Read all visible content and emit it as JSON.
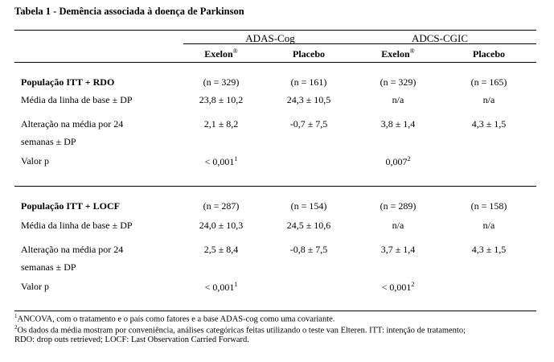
{
  "title": "Tabela 1 - Demência associada à doença de Parkinson",
  "groups": [
    "ADAS-Cog",
    "ADCS-CGIC"
  ],
  "columns": [
    {
      "name": "Exelon",
      "sup": "®"
    },
    {
      "name": "Placebo",
      "sup": ""
    },
    {
      "name": "Exelon",
      "sup": "®"
    },
    {
      "name": "Placebo",
      "sup": ""
    }
  ],
  "sections": [
    {
      "name": "População ITT + RDO",
      "n": [
        "(n = 329)",
        "(n = 161)",
        "(n = 329)",
        "(n = 165)"
      ],
      "rows": [
        {
          "label": "Média da linha de base ± DP",
          "values": [
            "23,8 ± 10,2",
            "24,3 ± 10,5",
            "n/a",
            "n/a"
          ]
        },
        {
          "label1": "Alteração na média por 24",
          "label2": "semanas ± DP",
          "values": [
            "2,1 ± 8,2",
            "-0,7 ± 7,5",
            "3,8 ± 1,4",
            "4,3 ± 1,5"
          ]
        },
        {
          "label": "Valor p",
          "values": [
            "< 0,001",
            "",
            "0,007",
            ""
          ],
          "sups": [
            "1",
            "",
            "2",
            ""
          ]
        }
      ]
    },
    {
      "name": "População ITT + LOCF",
      "n": [
        "(n = 287)",
        "(n = 154)",
        "(n = 289)",
        "(n = 158)"
      ],
      "rows": [
        {
          "label": "Média da linha de base ± DP",
          "values": [
            "24,0 ± 10,3",
            "24,5 ± 10,6",
            "n/a",
            "n/a"
          ]
        },
        {
          "label1": "Alteração na média por 24",
          "label2": "semanas ± DP",
          "values": [
            "2,5 ± 8,4",
            "-0,8 ± 7,5",
            "3,7 ± 1,4",
            "4,3 ± 1,5"
          ]
        },
        {
          "label": "Valor p",
          "values": [
            "< 0,001",
            "",
            "< 0,001",
            ""
          ],
          "sups": [
            "1",
            "",
            "2",
            ""
          ]
        }
      ]
    }
  ],
  "footnotes": [
    {
      "mark": "1",
      "text": "ANCOVA, com o tratamento e o país como fatores e a base ADAS-cog como uma covariante."
    },
    {
      "mark": "2",
      "text": "Os dados da média mostram por conveniência, análises categóricas feitas utilizando o teste van Elteren. ITT: intenção de tratamento;"
    },
    {
      "mark": "",
      "text": "RDO: drop outs retrieved; LOCF: Last Observation Carried Forward."
    }
  ]
}
